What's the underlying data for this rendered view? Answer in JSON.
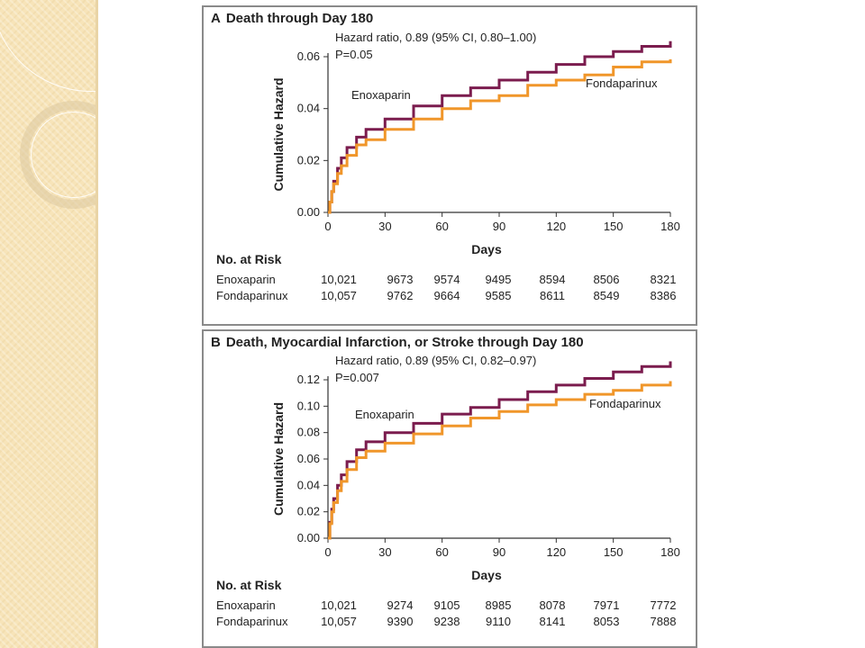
{
  "colors": {
    "enoxaparin": "#7b1c4e",
    "fondaparinux": "#f0962a",
    "frame": "#8a8a8a",
    "sidebar": "#f7e4b9"
  },
  "chart_data": [
    {
      "type": "line",
      "panel_letter": "A",
      "title": "Death through Day 180",
      "xlabel": "Days",
      "ylabel": "Cumulative Hazard",
      "xlim": [
        0,
        180
      ],
      "ylim": [
        0,
        0.06
      ],
      "xticks": [
        0,
        30,
        60,
        90,
        120,
        150,
        180
      ],
      "yticks": [
        "0.00",
        "0.02",
        "0.04",
        "0.06"
      ],
      "annotation": [
        "Hazard ratio, 0.89 (95% CI, 0.80–1.00)",
        "P=0.05"
      ],
      "series": [
        {
          "name": "Enoxaparin",
          "color": "#7b1c4e",
          "x": [
            0,
            1,
            2,
            3,
            5,
            7,
            10,
            15,
            20,
            30,
            45,
            60,
            75,
            90,
            105,
            120,
            135,
            150,
            165,
            180
          ],
          "y": [
            0,
            0.004,
            0.008,
            0.012,
            0.017,
            0.021,
            0.025,
            0.029,
            0.032,
            0.036,
            0.041,
            0.045,
            0.048,
            0.051,
            0.054,
            0.057,
            0.06,
            0.062,
            0.064,
            0.066
          ]
        },
        {
          "name": "Fondaparinux",
          "color": "#f0962a",
          "x": [
            0,
            1,
            2,
            3,
            5,
            7,
            10,
            15,
            20,
            30,
            45,
            60,
            75,
            90,
            105,
            120,
            135,
            150,
            165,
            180
          ],
          "y": [
            0,
            0.004,
            0.008,
            0.011,
            0.015,
            0.018,
            0.022,
            0.026,
            0.028,
            0.032,
            0.036,
            0.04,
            0.043,
            0.045,
            0.049,
            0.051,
            0.053,
            0.056,
            0.058,
            0.059
          ]
        }
      ],
      "series_labels": [
        "Enoxaparin",
        "Fondaparinux"
      ],
      "risk_table": {
        "title": "No. at Risk",
        "rows": [
          {
            "label": "Enoxaparin",
            "values": [
              "10,021",
              "9673",
              "9574",
              "9495",
              "8594",
              "8506",
              "8321"
            ]
          },
          {
            "label": "Fondaparinux",
            "values": [
              "10,057",
              "9762",
              "9664",
              "9585",
              "8611",
              "8549",
              "8386"
            ]
          }
        ]
      }
    },
    {
      "type": "line",
      "panel_letter": "B",
      "title": "Death, Myocardial Infarction, or Stroke through Day 180",
      "xlabel": "Days",
      "ylabel": "Cumulative Hazard",
      "xlim": [
        0,
        180
      ],
      "ylim": [
        0,
        0.12
      ],
      "xticks": [
        0,
        30,
        60,
        90,
        120,
        150,
        180
      ],
      "yticks": [
        "0.00",
        "0.02",
        "0.04",
        "0.06",
        "0.08",
        "0.10",
        "0.12"
      ],
      "annotation": [
        "Hazard ratio, 0.89 (95% CI, 0.82–0.97)",
        "P=0.007"
      ],
      "series": [
        {
          "name": "Enoxaparin",
          "color": "#7b1c4e",
          "x": [
            0,
            1,
            2,
            3,
            5,
            7,
            10,
            15,
            20,
            30,
            45,
            60,
            75,
            90,
            105,
            120,
            135,
            150,
            165,
            180
          ],
          "y": [
            0,
            0.012,
            0.022,
            0.03,
            0.04,
            0.048,
            0.058,
            0.067,
            0.073,
            0.08,
            0.087,
            0.094,
            0.099,
            0.105,
            0.111,
            0.116,
            0.121,
            0.126,
            0.13,
            0.134
          ]
        },
        {
          "name": "Fondaparinux",
          "color": "#f0962a",
          "x": [
            0,
            1,
            2,
            3,
            5,
            7,
            10,
            15,
            20,
            30,
            45,
            60,
            75,
            90,
            105,
            120,
            135,
            150,
            165,
            180
          ],
          "y": [
            0,
            0.011,
            0.02,
            0.027,
            0.036,
            0.043,
            0.052,
            0.061,
            0.066,
            0.072,
            0.079,
            0.085,
            0.091,
            0.096,
            0.101,
            0.105,
            0.109,
            0.112,
            0.116,
            0.119
          ]
        }
      ],
      "series_labels": [
        "Enoxaparin",
        "Fondaparinux"
      ],
      "risk_table": {
        "title": "No. at Risk",
        "rows": [
          {
            "label": "Enoxaparin",
            "values": [
              "10,021",
              "9274",
              "9105",
              "8985",
              "8078",
              "7971",
              "7772"
            ]
          },
          {
            "label": "Fondaparinux",
            "values": [
              "10,057",
              "9390",
              "9238",
              "9110",
              "8141",
              "8053",
              "7888"
            ]
          }
        ]
      }
    }
  ]
}
